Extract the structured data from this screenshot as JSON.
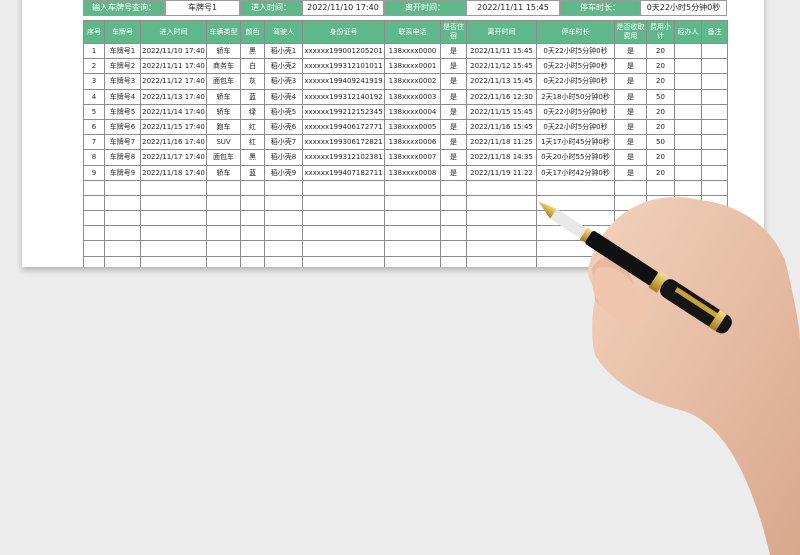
{
  "query_bar": {
    "plate_label": "输入车牌号查询：",
    "plate_value": "车牌号1",
    "enter_label": "进入时间：",
    "enter_value": "2022/11/10 17:40",
    "leave_label": "离开时间：",
    "leave_value": "2022/11/11 15:45",
    "duration_label": "停车时长：",
    "duration_value": "0天22小时5分钟0秒"
  },
  "table": {
    "headers": [
      "序号",
      "车牌号",
      "进入时间",
      "车辆类型",
      "颜色",
      "驾驶人",
      "身份证号",
      "联系电话",
      "是否住宿",
      "离开时间",
      "停车时长",
      "是否收取费用",
      "费用小计",
      "经办人",
      "备注"
    ],
    "rows": [
      [
        "1",
        "车牌号1",
        "2022/11/10 17:40",
        "轿车",
        "黑",
        "稻小壳1",
        "xxxxxx199001205201",
        "138xxxx0000",
        "是",
        "2022/11/11 15:45",
        "0天22小时5分钟0秒",
        "是",
        "20",
        "",
        ""
      ],
      [
        "2",
        "车牌号2",
        "2022/11/11 17:40",
        "商务车",
        "白",
        "稻小壳2",
        "xxxxxx199312101011",
        "138xxxx0001",
        "是",
        "2022/11/12 15:45",
        "0天22小时5分钟0秒",
        "是",
        "20",
        "",
        ""
      ],
      [
        "3",
        "车牌号3",
        "2022/11/12 17:40",
        "面包车",
        "灰",
        "稻小壳3",
        "xxxxxx199409241919",
        "138xxxx0002",
        "是",
        "2022/11/13 15:45",
        "0天22小时5分钟0秒",
        "是",
        "20",
        "",
        ""
      ],
      [
        "4",
        "车牌号4",
        "2022/11/13 17:40",
        "轿车",
        "蓝",
        "稻小壳4",
        "xxxxxx199312140192",
        "138xxxx0003",
        "是",
        "2022/11/16 12:30",
        "2天18小时50分钟0秒",
        "是",
        "50",
        "",
        ""
      ],
      [
        "5",
        "车牌号5",
        "2022/11/14 17:40",
        "轿车",
        "绿",
        "稻小壳5",
        "xxxxxx199212152345",
        "138xxxx0004",
        "是",
        "2022/11/15 15:45",
        "0天22小时5分钟0秒",
        "是",
        "20",
        "",
        ""
      ],
      [
        "6",
        "车牌号6",
        "2022/11/15 17:40",
        "跑车",
        "红",
        "稻小壳6",
        "xxxxxx199406172771",
        "138xxxx0005",
        "是",
        "2022/11/16 15:45",
        "0天22小时5分钟0秒",
        "是",
        "20",
        "",
        ""
      ],
      [
        "7",
        "车牌号7",
        "2022/11/16 17:40",
        "SUV",
        "红",
        "稻小壳7",
        "xxxxxx199306172821",
        "138xxxx0006",
        "是",
        "2022/11/18 11:25",
        "1天17小时45分钟0秒",
        "是",
        "50",
        "",
        ""
      ],
      [
        "8",
        "车牌号8",
        "2022/11/17 17:40",
        "面包车",
        "黑",
        "稻小壳8",
        "xxxxxx199312102381",
        "138xxxx0007",
        "是",
        "2022/11/18 14:35",
        "0天20小时55分钟0秒",
        "是",
        "20",
        "",
        ""
      ],
      [
        "9",
        "车牌号9",
        "2022/11/18 17:40",
        "轿车",
        "蓝",
        "稻小壳9",
        "xxxxxx199407182711",
        "138xxxx0008",
        "是",
        "2022/11/19 11:22",
        "0天17小时42分钟0秒",
        "是",
        "20",
        "",
        ""
      ]
    ],
    "empty_rows": 6
  },
  "colors": {
    "header_green": "#5fb88a",
    "background": "#ececec"
  },
  "decor": {
    "image": "hand-holding-fountain-pen"
  }
}
